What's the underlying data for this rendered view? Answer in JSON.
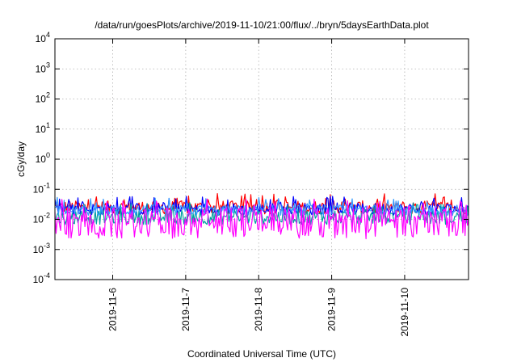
{
  "chart_data": {
    "type": "line",
    "title": "/data/run/goesPlots/archive/2019-11-10/21:00/flux/../bryn/5daysEarthData.plot",
    "xlabel": "Coordinated Universal Time (UTC)",
    "ylabel": "cGy/day",
    "y_scale": "log",
    "ylim": [
      0.0001,
      10000
    ],
    "xlim": [
      "2019-11-05T05:00",
      "2019-11-10T21:00"
    ],
    "x_ticks": [
      "2019-11-6",
      "2019-11-7",
      "2019-11-8",
      "2019-11-9",
      "2019-11-10"
    ],
    "y_ticks": [
      {
        "base": "10",
        "exp": "-4",
        "value": 0.0001
      },
      {
        "base": "10",
        "exp": "-3",
        "value": 0.001
      },
      {
        "base": "10",
        "exp": "-2",
        "value": 0.01
      },
      {
        "base": "10",
        "exp": "-1",
        "value": 0.1
      },
      {
        "base": "10",
        "exp": "0",
        "value": 1
      },
      {
        "base": "10",
        "exp": "1",
        "value": 10
      },
      {
        "base": "10",
        "exp": "2",
        "value": 100
      },
      {
        "base": "10",
        "exp": "3",
        "value": 1000
      },
      {
        "base": "10",
        "exp": "4",
        "value": 10000
      }
    ],
    "grid": true,
    "legend": "none",
    "series": [
      {
        "color": "#ff0000",
        "baseline": 0.025,
        "spread": 0.22,
        "spike": 0.06
      },
      {
        "color": "#0000ff",
        "baseline": 0.022,
        "spread": 0.2,
        "spike": 0.05
      },
      {
        "color": "#00a0a0",
        "baseline": 0.012,
        "spread": 0.25,
        "spike": 0.03
      },
      {
        "color": "#3399ff",
        "baseline": 0.02,
        "spread": 0.18,
        "spike": 0.045
      },
      {
        "color": "#ff00ff",
        "baseline": 0.005,
        "spread": 0.35,
        "spike": 0.04
      }
    ]
  }
}
